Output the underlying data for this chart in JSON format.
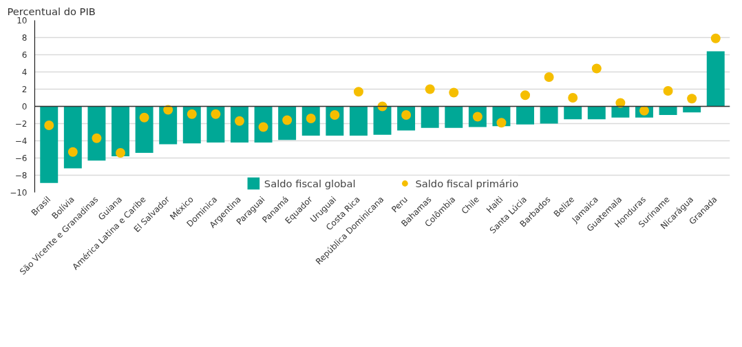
{
  "chart_data": {
    "type": "bar",
    "ylabel": "Percentual do PIB",
    "categories": [
      "Brasil",
      "Bolívia",
      "São Vicente e Granadinas",
      "Guiana",
      "América Latina e Caribe",
      "El Salvador",
      "México",
      "Dominica",
      "Argentina",
      "Paraguai",
      "Panamá",
      "Equador",
      "Uruguai",
      "Costa Rica",
      "República Dominicana",
      "Peru",
      "Bahamas",
      "Colômbia",
      "Chile",
      "Haiti",
      "Santa Lúcia",
      "Barbados",
      "Belize",
      "Jamaica",
      "Guatemala",
      "Honduras",
      "Suriname",
      "Nicarágua",
      "Granada"
    ],
    "series": [
      {
        "name": "Saldo fiscal global",
        "type": "bar",
        "color": "#00a896",
        "values": [
          -8.9,
          -7.2,
          -6.3,
          -5.8,
          -5.4,
          -4.4,
          -4.3,
          -4.2,
          -4.2,
          -4.2,
          -3.9,
          -3.4,
          -3.4,
          -3.4,
          -3.3,
          -2.8,
          -2.5,
          -2.5,
          -2.4,
          -2.3,
          -2.1,
          -2.0,
          -1.5,
          -1.5,
          -1.3,
          -1.3,
          -1.0,
          -0.7,
          6.4
        ]
      },
      {
        "name": "Saldo fiscal primário",
        "type": "scatter",
        "color": "#f5be00",
        "marker": "circle",
        "values": [
          -2.2,
          -5.3,
          -3.7,
          -5.4,
          -1.3,
          -0.4,
          -0.9,
          -0.9,
          -1.7,
          -2.4,
          -1.6,
          -1.4,
          -1.0,
          1.7,
          0.0,
          -1.0,
          2.0,
          1.6,
          -1.2,
          -1.9,
          1.3,
          3.4,
          1.0,
          4.4,
          0.4,
          -0.5,
          1.8,
          0.9,
          7.9
        ]
      }
    ],
    "ylim": [
      -10,
      10
    ],
    "yticks": [
      -10,
      -8,
      -6,
      -4,
      -2,
      0,
      2,
      4,
      6,
      8,
      10
    ],
    "grid": "y",
    "legend": "bottom"
  }
}
